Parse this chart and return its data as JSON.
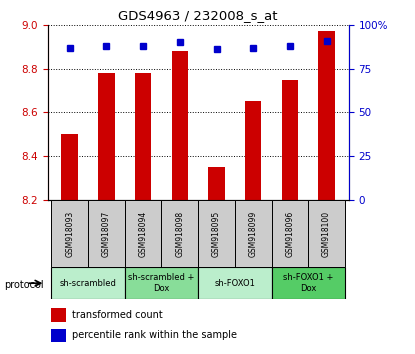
{
  "title": "GDS4963 / 232008_s_at",
  "samples": [
    "GSM918093",
    "GSM918097",
    "GSM918094",
    "GSM918098",
    "GSM918095",
    "GSM918099",
    "GSM918096",
    "GSM918100"
  ],
  "transformed_count": [
    8.5,
    8.78,
    8.78,
    8.88,
    8.35,
    8.65,
    8.75,
    8.97
  ],
  "percentile_rank": [
    87,
    88,
    88,
    90,
    86,
    87,
    88,
    91
  ],
  "ylim_left": [
    8.2,
    9.0
  ],
  "ylim_right": [
    0,
    100
  ],
  "yticks_left": [
    8.2,
    8.4,
    8.6,
    8.8,
    9.0
  ],
  "yticks_right": [
    0,
    25,
    50,
    75,
    100
  ],
  "bar_color": "#cc0000",
  "dot_color": "#0000cc",
  "bar_bottom": 8.2,
  "groups": [
    {
      "label": "sh-scrambled",
      "start": 0,
      "end": 2,
      "color": "#bbeecc"
    },
    {
      "label": "sh-scrambled +\nDox",
      "start": 2,
      "end": 4,
      "color": "#88dd99"
    },
    {
      "label": "sh-FOXO1",
      "start": 4,
      "end": 6,
      "color": "#bbeecc"
    },
    {
      "label": "sh-FOXO1 +\nDox",
      "start": 6,
      "end": 8,
      "color": "#55cc66"
    }
  ],
  "legend_red_label": "transformed count",
  "legend_blue_label": "percentile rank within the sample",
  "protocol_label": "protocol",
  "background_color": "#ffffff",
  "tick_label_color_left": "#cc0000",
  "tick_label_color_right": "#0000cc",
  "sample_box_color": "#cccccc",
  "bar_width": 0.45
}
